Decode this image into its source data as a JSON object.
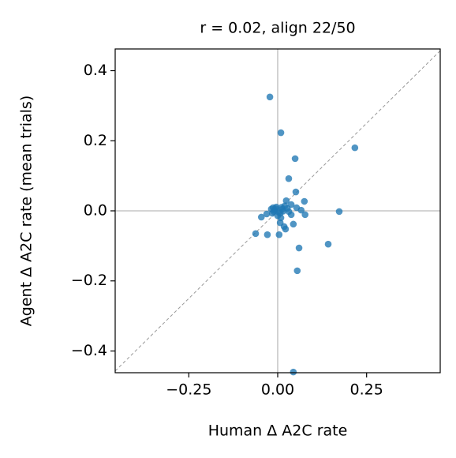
{
  "chart_data": {
    "type": "scatter",
    "title": "r = 0.02, align 22/50",
    "x_label": "Human Δ A2C rate",
    "y_label": "Agent Δ A2C rate (mean trials)",
    "xlim": [
      -0.457,
      0.457
    ],
    "ylim": [
      -0.462,
      0.462
    ],
    "xticks": [
      {
        "value": -0.25,
        "label": "−0.25"
      },
      {
        "value": 0,
        "label": "0.00"
      },
      {
        "value": 0.25,
        "label": "0.25"
      }
    ],
    "yticks": [
      {
        "value": -0.4,
        "label": "−0.4"
      },
      {
        "value": -0.2,
        "label": "−0.2"
      },
      {
        "value": 0,
        "label": "0.0"
      },
      {
        "value": 0.2,
        "label": "0.2"
      },
      {
        "value": 0.4,
        "label": "0.4"
      }
    ],
    "series": [
      {
        "color": "#1f77b4",
        "x": [
          -0.022,
          0.009,
          0.217,
          0.049,
          0.031,
          0.051,
          0.075,
          0.024,
          0.038,
          -0.013,
          -0.018,
          -0.009,
          0.173,
          0.053,
          0.066,
          0.077,
          0.031,
          0.038,
          0.013,
          0.007,
          0.0,
          -0.015,
          -0.031,
          -0.046,
          0.007,
          0.018,
          0.022,
          0.044,
          0.004,
          -0.029,
          -0.062,
          0.142,
          0.06,
          0.055,
          0.044,
          0.02,
          -0.011,
          -0.004,
          0.027,
          0.009,
          0.015,
          -0.006,
          0.003,
          0.011
        ],
        "values": [
          0.325,
          0.223,
          0.18,
          0.149,
          0.092,
          0.054,
          0.027,
          0.029,
          0.018,
          0.009,
          0.005,
          0.002,
          -0.002,
          0.009,
          0.002,
          -0.011,
          -0.002,
          -0.011,
          0.005,
          -0.007,
          -0.014,
          -0.007,
          -0.009,
          -0.018,
          -0.034,
          -0.045,
          -0.052,
          -0.038,
          -0.068,
          -0.068,
          -0.065,
          -0.095,
          -0.106,
          -0.171,
          -0.46,
          0.014,
          -0.002,
          0.011,
          0.007,
          -0.02,
          -0.001,
          0.006,
          -0.004,
          0.01
        ]
      }
    ]
  }
}
